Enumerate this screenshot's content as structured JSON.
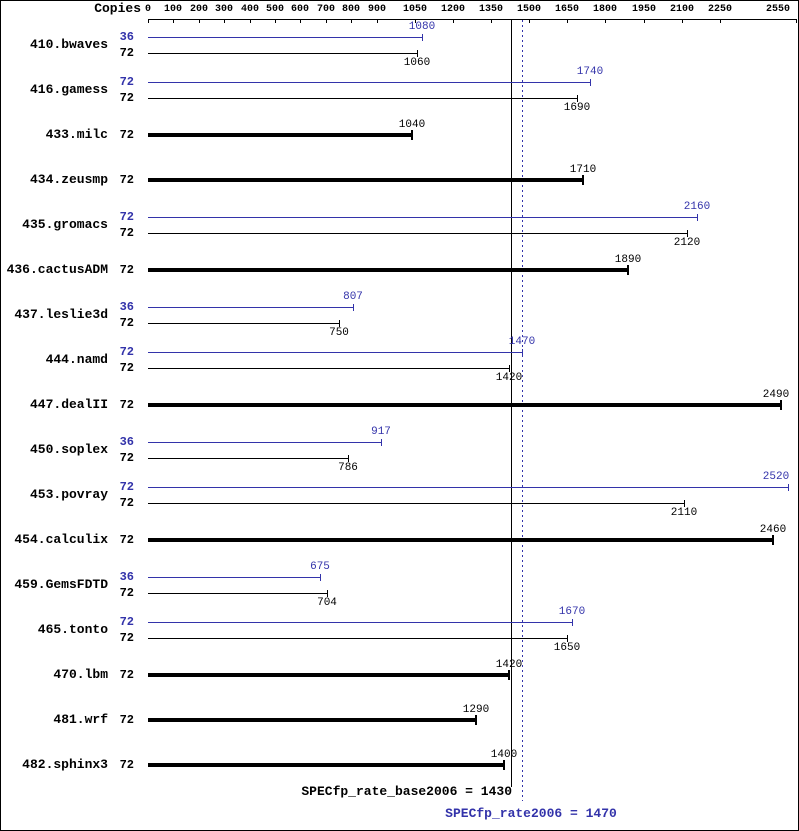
{
  "header": {
    "copies_label": "Copies"
  },
  "footer": {
    "base_label": "SPECfp_rate_base2006 = 1430",
    "peak_label": "SPECfp_rate2006 = 1470"
  },
  "chart_data": {
    "type": "bar",
    "orientation": "horizontal",
    "title": "",
    "copies_column_header": "Copies",
    "unit_axis": {
      "min": 0,
      "max": 2550,
      "ticks": [
        0,
        100,
        200,
        300,
        400,
        500,
        600,
        700,
        800,
        900,
        1050,
        1200,
        1350,
        1500,
        1650,
        1800,
        1950,
        2100,
        2250,
        2550
      ]
    },
    "series_colors": {
      "base": "#000000",
      "peak": "#3333aa"
    },
    "reference_lines": [
      {
        "name": "SPECfp_rate_base2006",
        "value": 1430,
        "series": "base",
        "style": "solid"
      },
      {
        "name": "SPECfp_rate2006",
        "value": 1470,
        "series": "peak",
        "style": "dotted"
      }
    ],
    "benchmarks": [
      {
        "name": "410.bwaves",
        "bars": [
          {
            "series": "peak",
            "copies": 36,
            "value": 1080
          },
          {
            "series": "base",
            "copies": 72,
            "value": 1060
          }
        ]
      },
      {
        "name": "416.gamess",
        "bars": [
          {
            "series": "peak",
            "copies": 72,
            "value": 1740
          },
          {
            "series": "base",
            "copies": 72,
            "value": 1690
          }
        ]
      },
      {
        "name": "433.milc",
        "bars": [
          {
            "series": "base",
            "copies": 72,
            "value": 1040
          }
        ]
      },
      {
        "name": "434.zeusmp",
        "bars": [
          {
            "series": "base",
            "copies": 72,
            "value": 1710
          }
        ]
      },
      {
        "name": "435.gromacs",
        "bars": [
          {
            "series": "peak",
            "copies": 72,
            "value": 2160
          },
          {
            "series": "base",
            "copies": 72,
            "value": 2120
          }
        ]
      },
      {
        "name": "436.cactusADM",
        "bars": [
          {
            "series": "base",
            "copies": 72,
            "value": 1890
          }
        ]
      },
      {
        "name": "437.leslie3d",
        "bars": [
          {
            "series": "peak",
            "copies": 36,
            "value": 807
          },
          {
            "series": "base",
            "copies": 72,
            "value": 750
          }
        ]
      },
      {
        "name": "444.namd",
        "bars": [
          {
            "series": "peak",
            "copies": 72,
            "value": 1470
          },
          {
            "series": "base",
            "copies": 72,
            "value": 1420
          }
        ]
      },
      {
        "name": "447.dealII",
        "bars": [
          {
            "series": "base",
            "copies": 72,
            "value": 2490
          }
        ]
      },
      {
        "name": "450.soplex",
        "bars": [
          {
            "series": "peak",
            "copies": 36,
            "value": 917
          },
          {
            "series": "base",
            "copies": 72,
            "value": 786
          }
        ]
      },
      {
        "name": "453.povray",
        "bars": [
          {
            "series": "peak",
            "copies": 72,
            "value": 2520
          },
          {
            "series": "base",
            "copies": 72,
            "value": 2110
          }
        ]
      },
      {
        "name": "454.calculix",
        "bars": [
          {
            "series": "base",
            "copies": 72,
            "value": 2460
          }
        ]
      },
      {
        "name": "459.GemsFDTD",
        "bars": [
          {
            "series": "peak",
            "copies": 36,
            "value": 675
          },
          {
            "series": "base",
            "copies": 72,
            "value": 704
          }
        ]
      },
      {
        "name": "465.tonto",
        "bars": [
          {
            "series": "peak",
            "copies": 72,
            "value": 1670
          },
          {
            "series": "base",
            "copies": 72,
            "value": 1650
          }
        ]
      },
      {
        "name": "470.lbm",
        "bars": [
          {
            "series": "base",
            "copies": 72,
            "value": 1420
          }
        ]
      },
      {
        "name": "481.wrf",
        "bars": [
          {
            "series": "base",
            "copies": 72,
            "value": 1290
          }
        ]
      },
      {
        "name": "482.sphinx3",
        "bars": [
          {
            "series": "base",
            "copies": 72,
            "value": 1400
          }
        ]
      }
    ]
  }
}
